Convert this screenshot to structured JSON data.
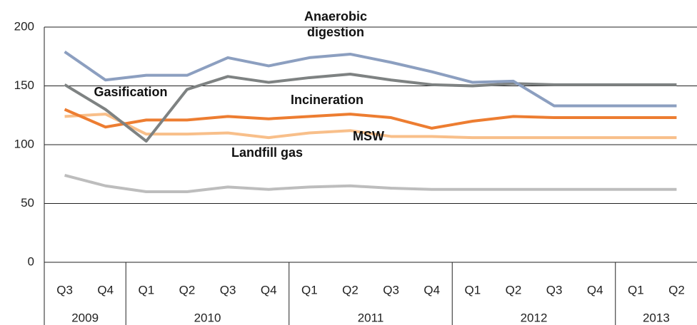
{
  "chart_data": {
    "type": "line",
    "categories": [
      "Q3",
      "Q4",
      "Q1",
      "Q2",
      "Q3",
      "Q4",
      "Q1",
      "Q2",
      "Q3",
      "Q4",
      "Q1",
      "Q2",
      "Q3",
      "Q4",
      "Q1",
      "Q2"
    ],
    "category_groups": [
      "2009",
      "2010",
      "2011",
      "2012",
      "2013"
    ],
    "series": [
      {
        "name": "Anaerobic digestion",
        "color": "#8c9fc0",
        "values": [
          179,
          155,
          159,
          159,
          174,
          167,
          174,
          177,
          170,
          162,
          153,
          154,
          133,
          133,
          133,
          133
        ]
      },
      {
        "name": "Gasification",
        "color": "#7e8282",
        "values": [
          151,
          130,
          103,
          147,
          158,
          153,
          157,
          160,
          155,
          151,
          150,
          152,
          151,
          151,
          151,
          151
        ]
      },
      {
        "name": "Incineration",
        "color": "#ed7d31",
        "values": [
          130,
          115,
          121,
          121,
          124,
          122,
          124,
          126,
          123,
          114,
          120,
          124,
          123,
          123,
          123,
          123
        ]
      },
      {
        "name": "MSW",
        "color": "#f8bf8a",
        "values": [
          124,
          126,
          109,
          109,
          110,
          106,
          110,
          112,
          107,
          107,
          106,
          106,
          106,
          106,
          106,
          106
        ]
      },
      {
        "name": "Landfill gas",
        "color": "#bdbdbd",
        "values": [
          74,
          65,
          60,
          60,
          64,
          62,
          64,
          65,
          63,
          62,
          62,
          62,
          62,
          62,
          62,
          62
        ]
      }
    ],
    "ylim": [
      0,
      200
    ],
    "yticks": [
      0,
      50,
      100,
      150,
      200
    ],
    "grid": true
  }
}
